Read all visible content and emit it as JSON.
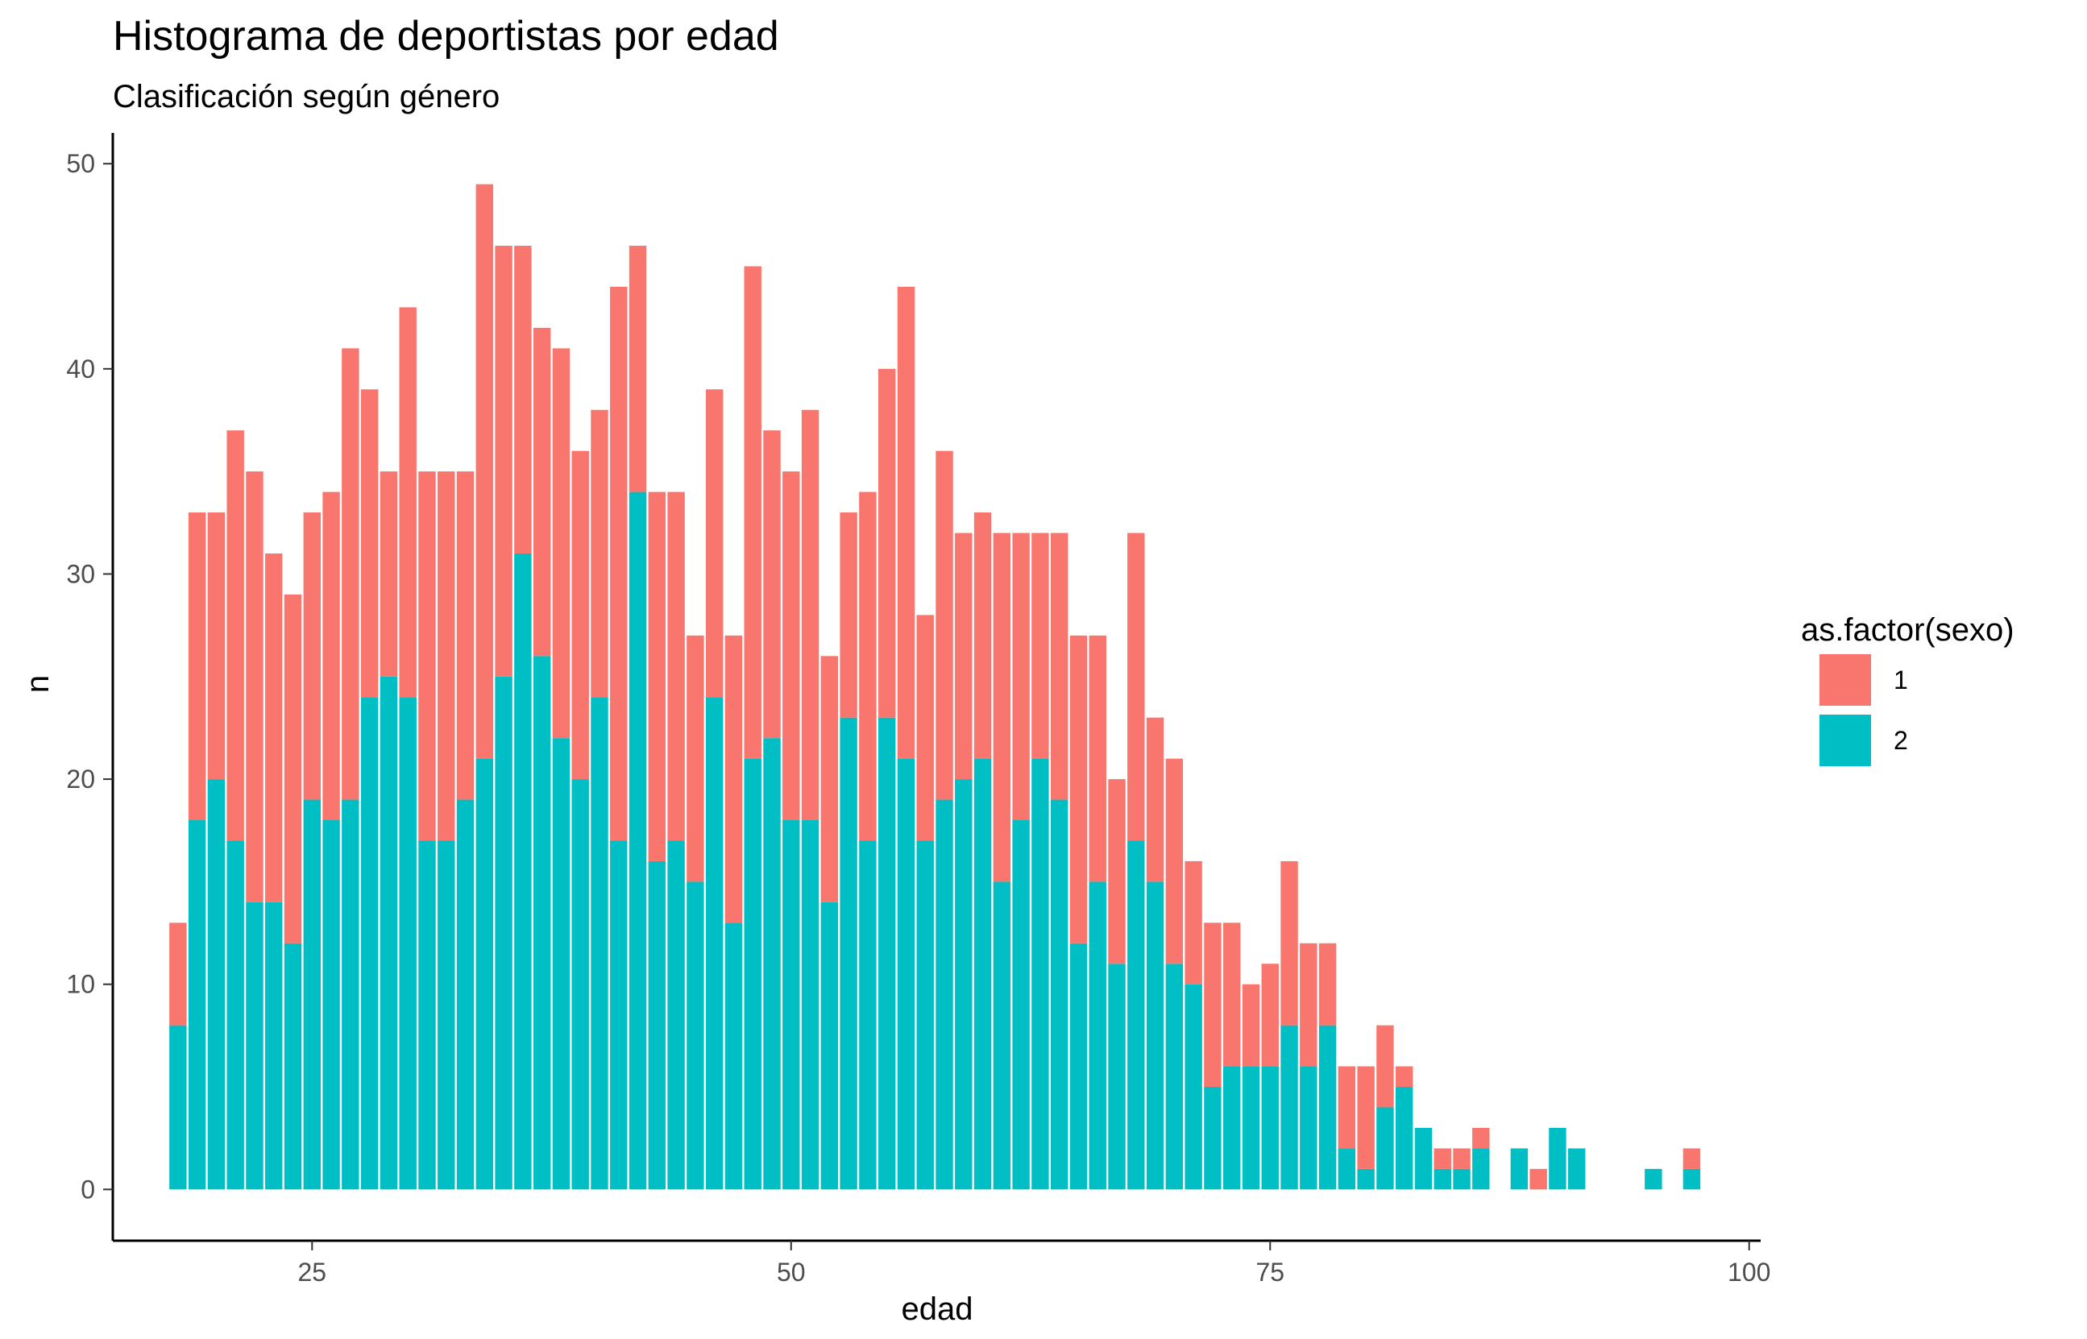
{
  "chart_data": {
    "type": "bar",
    "stacked": true,
    "title": "Histograma de deportistas por edad",
    "subtitle": "Clasificación según género",
    "xlabel": "edad",
    "ylabel": "n",
    "xlim": [
      14.6,
      100.6
    ],
    "ylim": [
      -2.5,
      51.5
    ],
    "xticks": [
      25,
      50,
      75,
      100
    ],
    "xtick_labels": [
      "25",
      "50",
      "75",
      "100"
    ],
    "yticks": [
      0,
      10,
      20,
      30,
      40,
      50
    ],
    "ytick_labels": [
      "0",
      "10",
      "20",
      "30",
      "40",
      "50"
    ],
    "grid": false,
    "legend": {
      "title": "as.factor(sexo)",
      "position": "right"
    },
    "x": [
      18,
      19,
      20,
      21,
      22,
      23,
      24,
      25,
      26,
      27,
      28,
      29,
      30,
      31,
      32,
      33,
      34,
      35,
      36,
      37,
      38,
      39,
      40,
      41,
      42,
      43,
      44,
      45,
      46,
      47,
      48,
      49,
      50,
      51,
      52,
      53,
      54,
      55,
      56,
      57,
      58,
      59,
      60,
      61,
      62,
      63,
      64,
      65,
      66,
      67,
      68,
      69,
      70,
      71,
      72,
      73,
      74,
      75,
      76,
      77,
      78,
      79,
      80,
      81,
      82,
      83,
      84,
      85,
      86,
      87,
      88,
      89,
      90,
      91,
      92,
      93,
      94,
      95,
      96,
      97
    ],
    "series": [
      {
        "name": "1",
        "color": "#F8766D",
        "values": [
          5,
          15,
          13,
          20,
          21,
          17,
          17,
          14,
          16,
          22,
          15,
          10,
          19,
          18,
          18,
          16,
          28,
          21,
          15,
          16,
          19,
          16,
          14,
          27,
          12,
          18,
          17,
          12,
          15,
          14,
          24,
          15,
          17,
          20,
          12,
          10,
          17,
          17,
          23,
          11,
          17,
          12,
          12,
          17,
          14,
          11,
          13,
          15,
          12,
          9,
          15,
          8,
          10,
          6,
          8,
          7,
          4,
          5,
          8,
          6,
          4,
          4,
          5,
          4,
          1,
          0,
          1,
          1,
          1,
          0,
          0,
          1,
          0,
          0,
          0,
          0,
          0,
          0,
          0,
          1
        ]
      },
      {
        "name": "2",
        "color": "#00BFC4",
        "values": [
          8,
          18,
          20,
          17,
          14,
          14,
          12,
          19,
          18,
          19,
          24,
          25,
          24,
          17,
          17,
          19,
          21,
          25,
          31,
          26,
          22,
          20,
          24,
          17,
          34,
          16,
          17,
          15,
          24,
          13,
          21,
          22,
          18,
          18,
          14,
          23,
          17,
          23,
          21,
          17,
          19,
          20,
          21,
          15,
          18,
          21,
          19,
          12,
          15,
          11,
          17,
          15,
          11,
          10,
          5,
          6,
          6,
          6,
          8,
          6,
          8,
          2,
          1,
          4,
          5,
          3,
          1,
          1,
          2,
          0,
          2,
          0,
          3,
          2,
          0,
          0,
          0,
          1,
          0,
          1
        ]
      }
    ]
  }
}
